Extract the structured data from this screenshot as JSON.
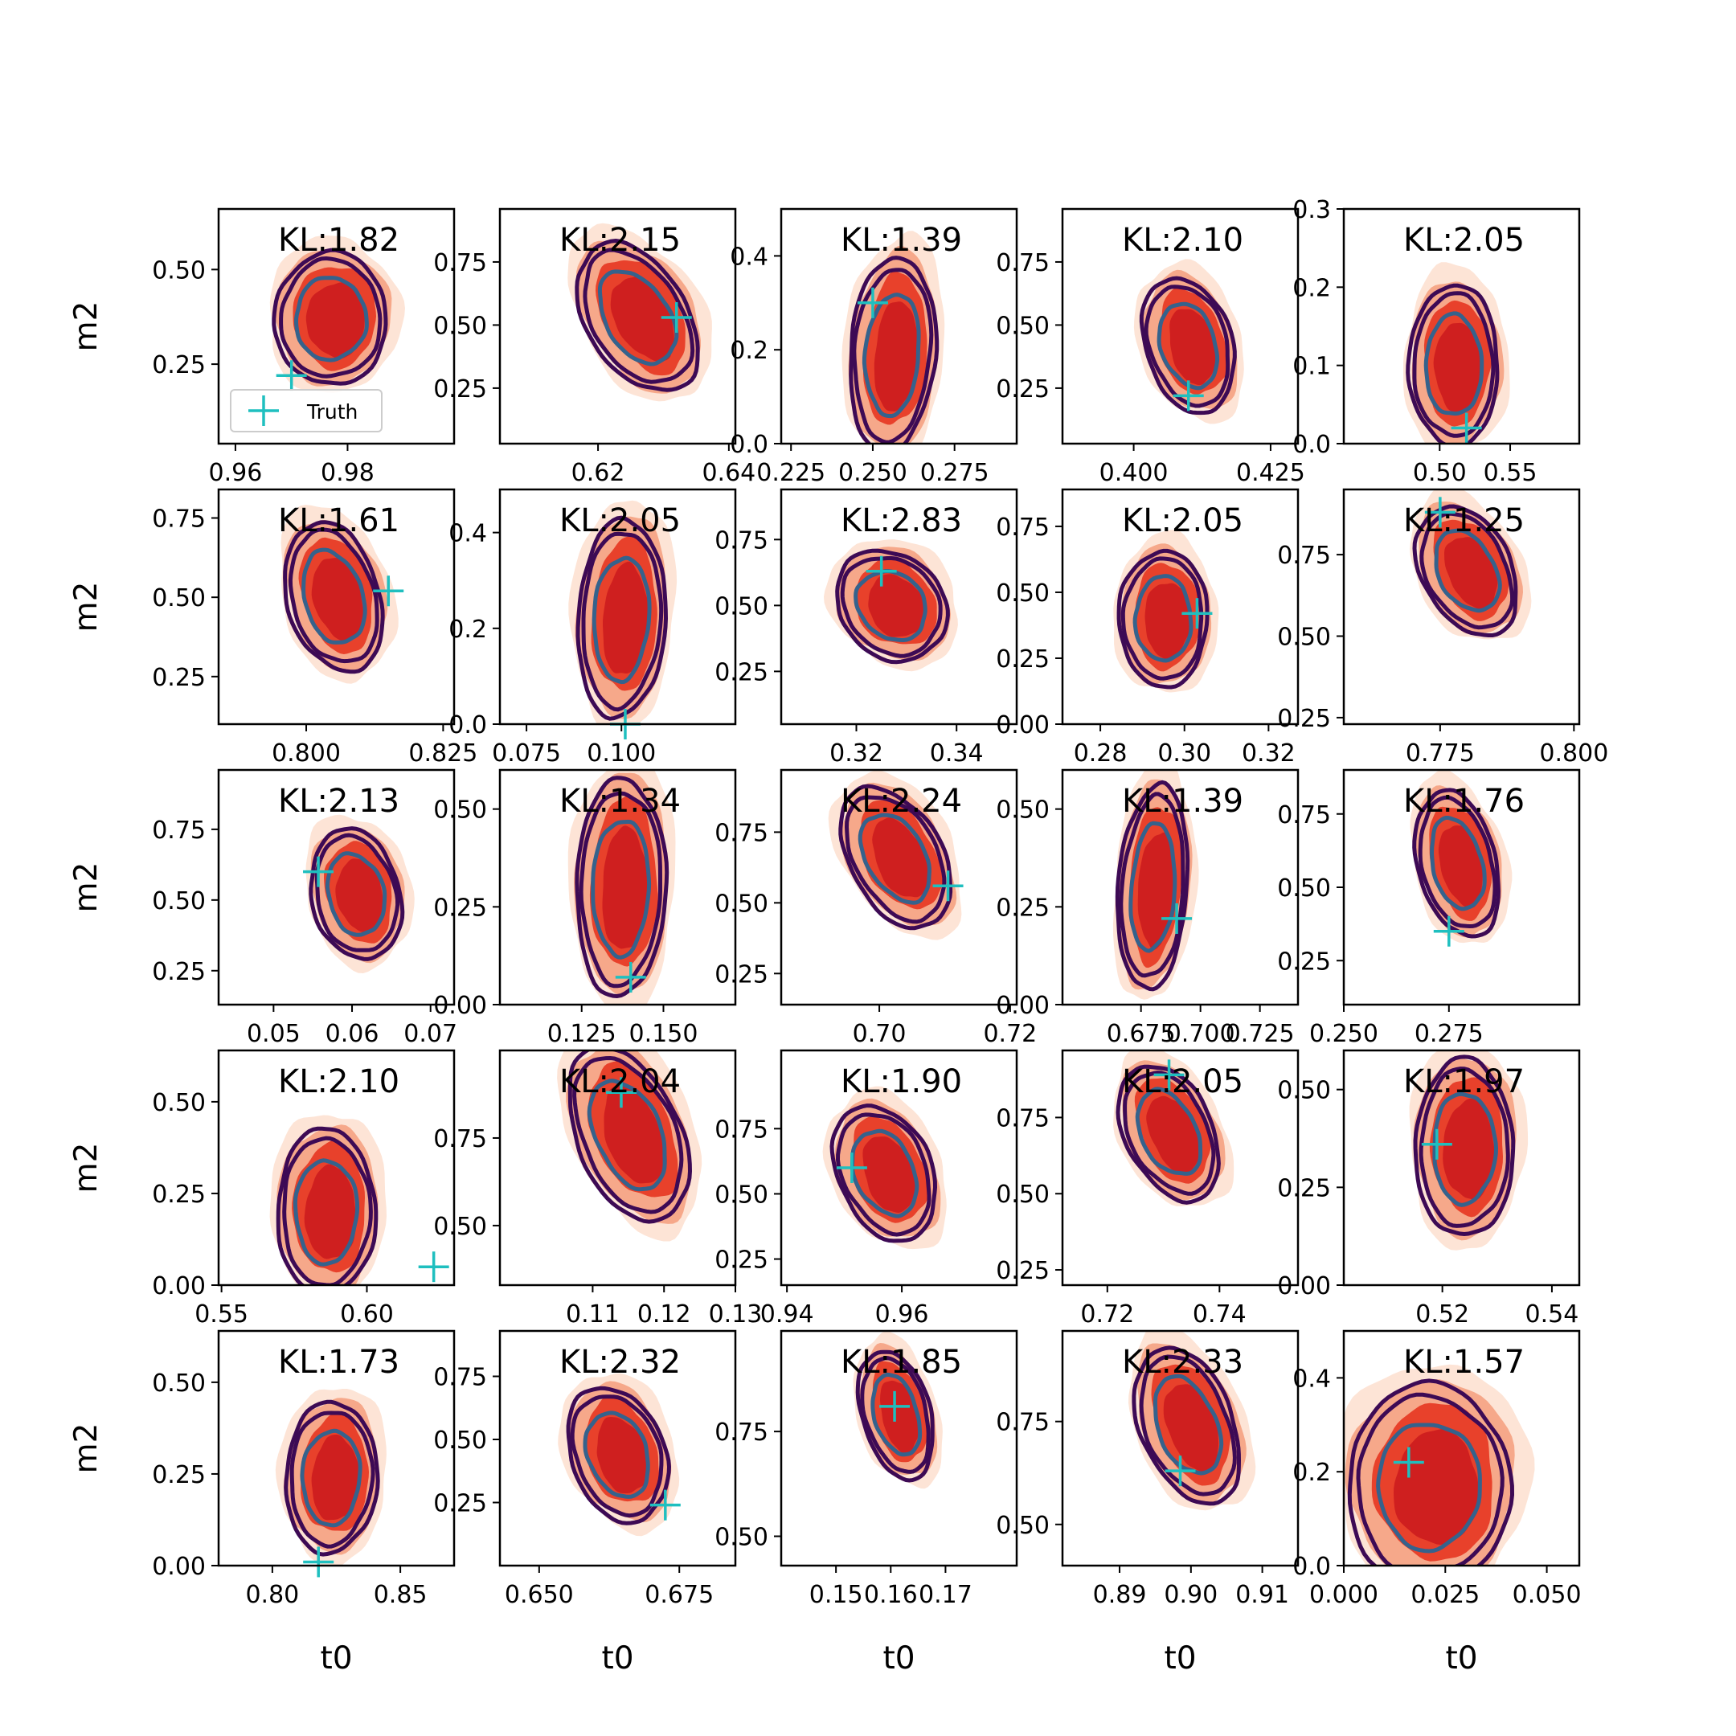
{
  "chart_data": {
    "type": "scatter",
    "description_rows": 5,
    "description_cols": 5,
    "xlabel": "t0",
    "ylabel": "m2",
    "annotation_prefix": "KL:",
    "legend": {
      "label": "Truth",
      "marker": "+",
      "color": "#1fbfbf",
      "placement": "lower-left",
      "panel": 0
    },
    "colors": {
      "fill_outer": "#fde4d6",
      "fill_mid": "#f6a88a",
      "fill_inner": "#e8412b",
      "fill_core": "#cf1f1f",
      "contour_outer": "#3d0a55",
      "contour_inner": "#35628c",
      "truth": "#1fbfbf"
    },
    "panels": [
      {
        "kl": "KL:1.82",
        "xlim": [
          0.957,
          0.999
        ],
        "ylim": [
          0.04,
          0.66
        ],
        "xticks": [
          0.96,
          0.98
        ],
        "xticklabels": [
          "0.96",
          "0.98"
        ],
        "yticks": [
          0.25,
          0.5
        ],
        "yticklabels": [
          "0.25",
          "0.50"
        ],
        "truth": [
          0.97,
          0.22
        ],
        "center": [
          0.977,
          0.37
        ],
        "spread": [
          0.0095,
          0.17
        ],
        "tilt": 0
      },
      {
        "kl": "KL:2.15",
        "xlim": [
          0.605,
          0.641
        ],
        "ylim": [
          0.03,
          0.96
        ],
        "xticks": [
          0.62,
          0.64
        ],
        "xticklabels": [
          "0.62",
          "0.64"
        ],
        "yticks": [
          0.25,
          0.5,
          0.75
        ],
        "yticklabels": [
          "0.25",
          "0.50",
          "0.75"
        ],
        "truth": [
          0.632,
          0.53
        ],
        "center": [
          0.626,
          0.53
        ],
        "spread": [
          0.0088,
          0.26
        ],
        "tilt": -0.5
      },
      {
        "kl": "KL:1.39",
        "xlim": [
          0.222,
          0.294
        ],
        "ylim": [
          0.0,
          0.5
        ],
        "xticks": [
          0.225,
          0.25,
          0.275
        ],
        "xticklabels": [
          "0.225",
          "0.250",
          "0.275"
        ],
        "yticks": [
          0.0,
          0.2,
          0.4
        ],
        "yticklabels": [
          "0.0",
          "0.2",
          "0.4"
        ],
        "truth": [
          0.25,
          0.3
        ],
        "center": [
          0.256,
          0.19
        ],
        "spread": [
          0.0125,
          0.2
        ],
        "tilt": 0.15
      },
      {
        "kl": "KL:2.10",
        "xlim": [
          0.387,
          0.43
        ],
        "ylim": [
          0.03,
          0.96
        ],
        "xticks": [
          0.4,
          0.425
        ],
        "xticklabels": [
          "0.400",
          "0.425"
        ],
        "yticks": [
          0.25,
          0.5,
          0.75
        ],
        "yticklabels": [
          "0.25",
          "0.50",
          "0.75"
        ],
        "truth": [
          0.41,
          0.22
        ],
        "center": [
          0.41,
          0.42
        ],
        "spread": [
          0.008,
          0.25
        ],
        "tilt": -0.3
      },
      {
        "kl": "KL:2.05",
        "xlim": [
          0.432,
          0.599
        ],
        "ylim": [
          0.0,
          0.3
        ],
        "xticks": [
          0.5,
          0.55
        ],
        "xticklabels": [
          "0.50",
          "0.55"
        ],
        "yticks": [
          0.0,
          0.1,
          0.2,
          0.3
        ],
        "yticklabels": [
          "0.0",
          "0.1",
          "0.2",
          "0.3"
        ],
        "truth": [
          0.519,
          0.02
        ],
        "center": [
          0.51,
          0.1
        ],
        "spread": [
          0.03,
          0.1
        ],
        "tilt": 0
      },
      {
        "kl": "KL:1.61",
        "xlim": [
          0.784,
          0.827
        ],
        "ylim": [
          0.1,
          0.84
        ],
        "xticks": [
          0.8,
          0.825
        ],
        "xticklabels": [
          "0.800",
          "0.825"
        ],
        "yticks": [
          0.25,
          0.5,
          0.75
        ],
        "yticklabels": [
          "0.25",
          "0.50",
          "0.75"
        ],
        "truth": [
          0.815,
          0.52
        ],
        "center": [
          0.805,
          0.5
        ],
        "spread": [
          0.0085,
          0.22
        ],
        "tilt": -0.3
      },
      {
        "kl": "KL:2.05",
        "xlim": [
          0.068,
          0.13
        ],
        "ylim": [
          0.0,
          0.49
        ],
        "xticks": [
          0.075,
          0.1
        ],
        "xticklabels": [
          "0.075",
          "0.100"
        ],
        "yticks": [
          0.0,
          0.2,
          0.4
        ],
        "yticklabels": [
          "0.0",
          "0.2",
          "0.4"
        ],
        "truth": [
          0.101,
          0.0
        ],
        "center": [
          0.1,
          0.22
        ],
        "spread": [
          0.011,
          0.2
        ],
        "tilt": 0.1
      },
      {
        "kl": "KL:2.83",
        "xlim": [
          0.305,
          0.352
        ],
        "ylim": [
          0.05,
          0.94
        ],
        "xticks": [
          0.32,
          0.34
        ],
        "xticklabels": [
          "0.32",
          "0.34"
        ],
        "yticks": [
          0.25,
          0.5,
          0.75
        ],
        "yticklabels": [
          "0.25",
          "0.50",
          "0.75"
        ],
        "truth": [
          0.325,
          0.63
        ],
        "center": [
          0.327,
          0.5
        ],
        "spread": [
          0.0105,
          0.2
        ],
        "tilt": -0.2
      },
      {
        "kl": "KL:2.05",
        "xlim": [
          0.271,
          0.327
        ],
        "ylim": [
          0.0,
          0.89
        ],
        "xticks": [
          0.28,
          0.3,
          0.32
        ],
        "xticklabels": [
          "0.28",
          "0.30",
          "0.32"
        ],
        "yticks": [
          0.0,
          0.25,
          0.5,
          0.75
        ],
        "yticklabels": [
          "0.00",
          "0.25",
          "0.50",
          "0.75"
        ],
        "truth": [
          0.303,
          0.42
        ],
        "center": [
          0.295,
          0.4
        ],
        "spread": [
          0.01,
          0.25
        ],
        "tilt": 0
      },
      {
        "kl": "KL:1.25",
        "xlim": [
          0.757,
          0.801
        ],
        "ylim": [
          0.23,
          0.95
        ],
        "xticks": [
          0.775,
          0.8
        ],
        "xticklabels": [
          "0.775",
          "0.800"
        ],
        "yticks": [
          0.25,
          0.5,
          0.75
        ],
        "yticklabels": [
          "0.25",
          "0.50",
          "0.75"
        ],
        "truth": [
          0.775,
          0.88
        ],
        "center": [
          0.78,
          0.7
        ],
        "spread": [
          0.009,
          0.18
        ],
        "tilt": -0.4
      },
      {
        "kl": "KL:2.13",
        "xlim": [
          0.043,
          0.073
        ],
        "ylim": [
          0.13,
          0.96
        ],
        "xticks": [
          0.05,
          0.06,
          0.07
        ],
        "xticklabels": [
          "0.05",
          "0.06",
          "0.07"
        ],
        "yticks": [
          0.25,
          0.5,
          0.75
        ],
        "yticklabels": [
          "0.25",
          "0.50",
          "0.75"
        ],
        "truth": [
          0.0557,
          0.6
        ],
        "center": [
          0.0605,
          0.52
        ],
        "spread": [
          0.0055,
          0.22
        ],
        "tilt": -0.2
      },
      {
        "kl": "KL:1.34",
        "xlim": [
          0.1,
          0.172
        ],
        "ylim": [
          0.0,
          0.6
        ],
        "xticks": [
          0.125,
          0.15
        ],
        "xticklabels": [
          "0.125",
          "0.150"
        ],
        "yticks": [
          0.0,
          0.25,
          0.5
        ],
        "yticklabels": [
          "0.00",
          "0.25",
          "0.50"
        ],
        "truth": [
          0.14,
          0.07
        ],
        "center": [
          0.137,
          0.3
        ],
        "spread": [
          0.013,
          0.27
        ],
        "tilt": 0.05
      },
      {
        "kl": "KL:2.24",
        "xlim": [
          0.685,
          0.721
        ],
        "ylim": [
          0.14,
          0.97
        ],
        "xticks": [
          0.7,
          0.72
        ],
        "xticklabels": [
          "0.70",
          "0.72"
        ],
        "yticks": [
          0.25,
          0.5,
          0.75
        ],
        "yticklabels": [
          "0.25",
          "0.50",
          "0.75"
        ],
        "truth": [
          0.7105,
          0.56
        ],
        "center": [
          0.7025,
          0.66
        ],
        "spread": [
          0.008,
          0.22
        ],
        "tilt": -0.5
      },
      {
        "kl": "KL:1.39",
        "xlim": [
          0.642,
          0.741
        ],
        "ylim": [
          0.0,
          0.6
        ],
        "xticks": [
          0.675,
          0.7,
          0.725
        ],
        "xticklabels": [
          "0.675",
          "0.700",
          "0.725"
        ],
        "yticks": [
          0.0,
          0.25,
          0.5
        ],
        "yticklabels": [
          "0.00",
          "0.25",
          "0.50"
        ],
        "truth": [
          0.69,
          0.22
        ],
        "center": [
          0.68,
          0.3
        ],
        "spread": [
          0.014,
          0.25
        ],
        "tilt": 0.2
      },
      {
        "kl": "KL:1.76",
        "xlim": [
          0.25,
          0.306
        ],
        "ylim": [
          0.1,
          0.9
        ],
        "xticks": [
          0.25,
          0.275
        ],
        "xticklabels": [
          "0.250",
          "0.275"
        ],
        "yticks": [
          0.25,
          0.5,
          0.75
        ],
        "yticklabels": [
          "0.25",
          "0.50",
          "0.75"
        ],
        "truth": [
          0.275,
          0.35
        ],
        "center": [
          0.277,
          0.58
        ],
        "spread": [
          0.0095,
          0.23
        ],
        "tilt": -0.35
      },
      {
        "kl": "KL:2.10",
        "xlim": [
          0.549,
          0.63
        ],
        "ylim": [
          0.0,
          0.64
        ],
        "xticks": [
          0.55,
          0.6
        ],
        "xticklabels": [
          "0.55",
          "0.60"
        ],
        "yticks": [
          0.0,
          0.25,
          0.5
        ],
        "yticklabels": [
          "0.00",
          "0.25",
          "0.50"
        ],
        "truth": [
          0.623,
          0.05
        ],
        "center": [
          0.586,
          0.2
        ],
        "spread": [
          0.016,
          0.22
        ],
        "tilt": 0
      },
      {
        "kl": "KL:2.04",
        "xlim": [
          0.097,
          0.13
        ],
        "ylim": [
          0.33,
          1.0
        ],
        "xticks": [
          0.11,
          0.12,
          0.13
        ],
        "xticklabels": [
          "0.11",
          "0.12",
          "0.13"
        ],
        "yticks": [
          0.5,
          0.75
        ],
        "yticklabels": [
          "0.50",
          "0.75"
        ],
        "truth": [
          0.114,
          0.88
        ],
        "center": [
          0.115,
          0.76
        ],
        "spread": [
          0.008,
          0.22
        ],
        "tilt": -0.5
      },
      {
        "kl": "KL:1.90",
        "xlim": [
          0.939,
          0.98
        ],
        "ylim": [
          0.15,
          1.05
        ],
        "xticks": [
          0.94,
          0.96
        ],
        "xticklabels": [
          "0.94",
          "0.96"
        ],
        "yticks": [
          0.25,
          0.5,
          0.75
        ],
        "yticklabels": [
          "0.25",
          "0.50",
          "0.75"
        ],
        "truth": [
          0.9513,
          0.6
        ],
        "center": [
          0.957,
          0.58
        ],
        "spread": [
          0.0085,
          0.24
        ],
        "tilt": -0.35
      },
      {
        "kl": "KL:2.05",
        "xlim": [
          0.712,
          0.754
        ],
        "ylim": [
          0.2,
          0.97
        ],
        "xticks": [
          0.72,
          0.74
        ],
        "xticklabels": [
          "0.72",
          "0.74"
        ],
        "yticks": [
          0.25,
          0.5,
          0.75
        ],
        "yticklabels": [
          "0.25",
          "0.50",
          "0.75"
        ],
        "truth": [
          0.731,
          0.89
        ],
        "center": [
          0.731,
          0.7
        ],
        "spread": [
          0.0085,
          0.2
        ],
        "tilt": -0.45
      },
      {
        "kl": "KL:1.97",
        "xlim": [
          0.502,
          0.545
        ],
        "ylim": [
          0.0,
          0.6
        ],
        "xticks": [
          0.52,
          0.54
        ],
        "xticklabels": [
          "0.52",
          "0.54"
        ],
        "yticks": [
          0.0,
          0.25,
          0.5
        ],
        "yticklabels": [
          "0.00",
          "0.25",
          "0.50"
        ],
        "truth": [
          0.519,
          0.36
        ],
        "center": [
          0.524,
          0.35
        ],
        "spread": [
          0.0085,
          0.22
        ],
        "tilt": 0
      },
      {
        "kl": "KL:1.73",
        "xlim": [
          0.779,
          0.871
        ],
        "ylim": [
          0.0,
          0.64
        ],
        "xticks": [
          0.8,
          0.85
        ],
        "xticklabels": [
          "0.80",
          "0.85"
        ],
        "yticks": [
          0.0,
          0.25,
          0.5
        ],
        "yticklabels": [
          "0.00",
          "0.25",
          "0.50"
        ],
        "truth": [
          0.818,
          0.01
        ],
        "center": [
          0.823,
          0.24
        ],
        "spread": [
          0.017,
          0.2
        ],
        "tilt": 0.05
      },
      {
        "kl": "KL:2.32",
        "xlim": [
          0.643,
          0.685
        ],
        "ylim": [
          0.0,
          0.93
        ],
        "xticks": [
          0.65,
          0.675
        ],
        "xticklabels": [
          "0.650",
          "0.675"
        ],
        "yticks": [
          0.25,
          0.5,
          0.75
        ],
        "yticklabels": [
          "0.25",
          "0.50",
          "0.75"
        ],
        "truth": [
          0.6725,
          0.24
        ],
        "center": [
          0.664,
          0.44
        ],
        "spread": [
          0.0085,
          0.25
        ],
        "tilt": -0.3
      },
      {
        "kl": "KL:1.85",
        "xlim": [
          0.14,
          0.183
        ],
        "ylim": [
          0.43,
          0.99
        ],
        "xticks": [
          0.15,
          0.16,
          0.17
        ],
        "xticklabels": [
          "0.15",
          "0.16",
          "0.17"
        ],
        "yticks": [
          0.5,
          0.75
        ],
        "yticklabels": [
          "0.50",
          "0.75"
        ],
        "truth": [
          0.1607,
          0.81
        ],
        "center": [
          0.161,
          0.79
        ],
        "spread": [
          0.0065,
          0.14
        ],
        "tilt": -0.4
      },
      {
        "kl": "KL:2.33",
        "xlim": [
          0.882,
          0.915
        ],
        "ylim": [
          0.4,
          0.97
        ],
        "xticks": [
          0.89,
          0.9,
          0.91
        ],
        "xticklabels": [
          "0.89",
          "0.90",
          "0.91"
        ],
        "yticks": [
          0.5,
          0.75
        ],
        "yticklabels": [
          "0.50",
          "0.75"
        ],
        "truth": [
          0.8985,
          0.63
        ],
        "center": [
          0.8995,
          0.74
        ],
        "spread": [
          0.007,
          0.17
        ],
        "tilt": -0.45
      },
      {
        "kl": "KL:1.57",
        "xlim": [
          0.0,
          0.058
        ],
        "ylim": [
          0.0,
          0.5
        ],
        "xticks": [
          0.0,
          0.025,
          0.05
        ],
        "xticklabels": [
          "0.000",
          "0.025",
          "0.050"
        ],
        "yticks": [
          0.0,
          0.2,
          0.4
        ],
        "yticklabels": [
          "0.0",
          "0.2",
          "0.4"
        ],
        "truth": [
          0.016,
          0.22
        ],
        "center": [
          0.021,
          0.17
        ],
        "spread": [
          0.019,
          0.21
        ],
        "tilt": 0
      }
    ]
  }
}
